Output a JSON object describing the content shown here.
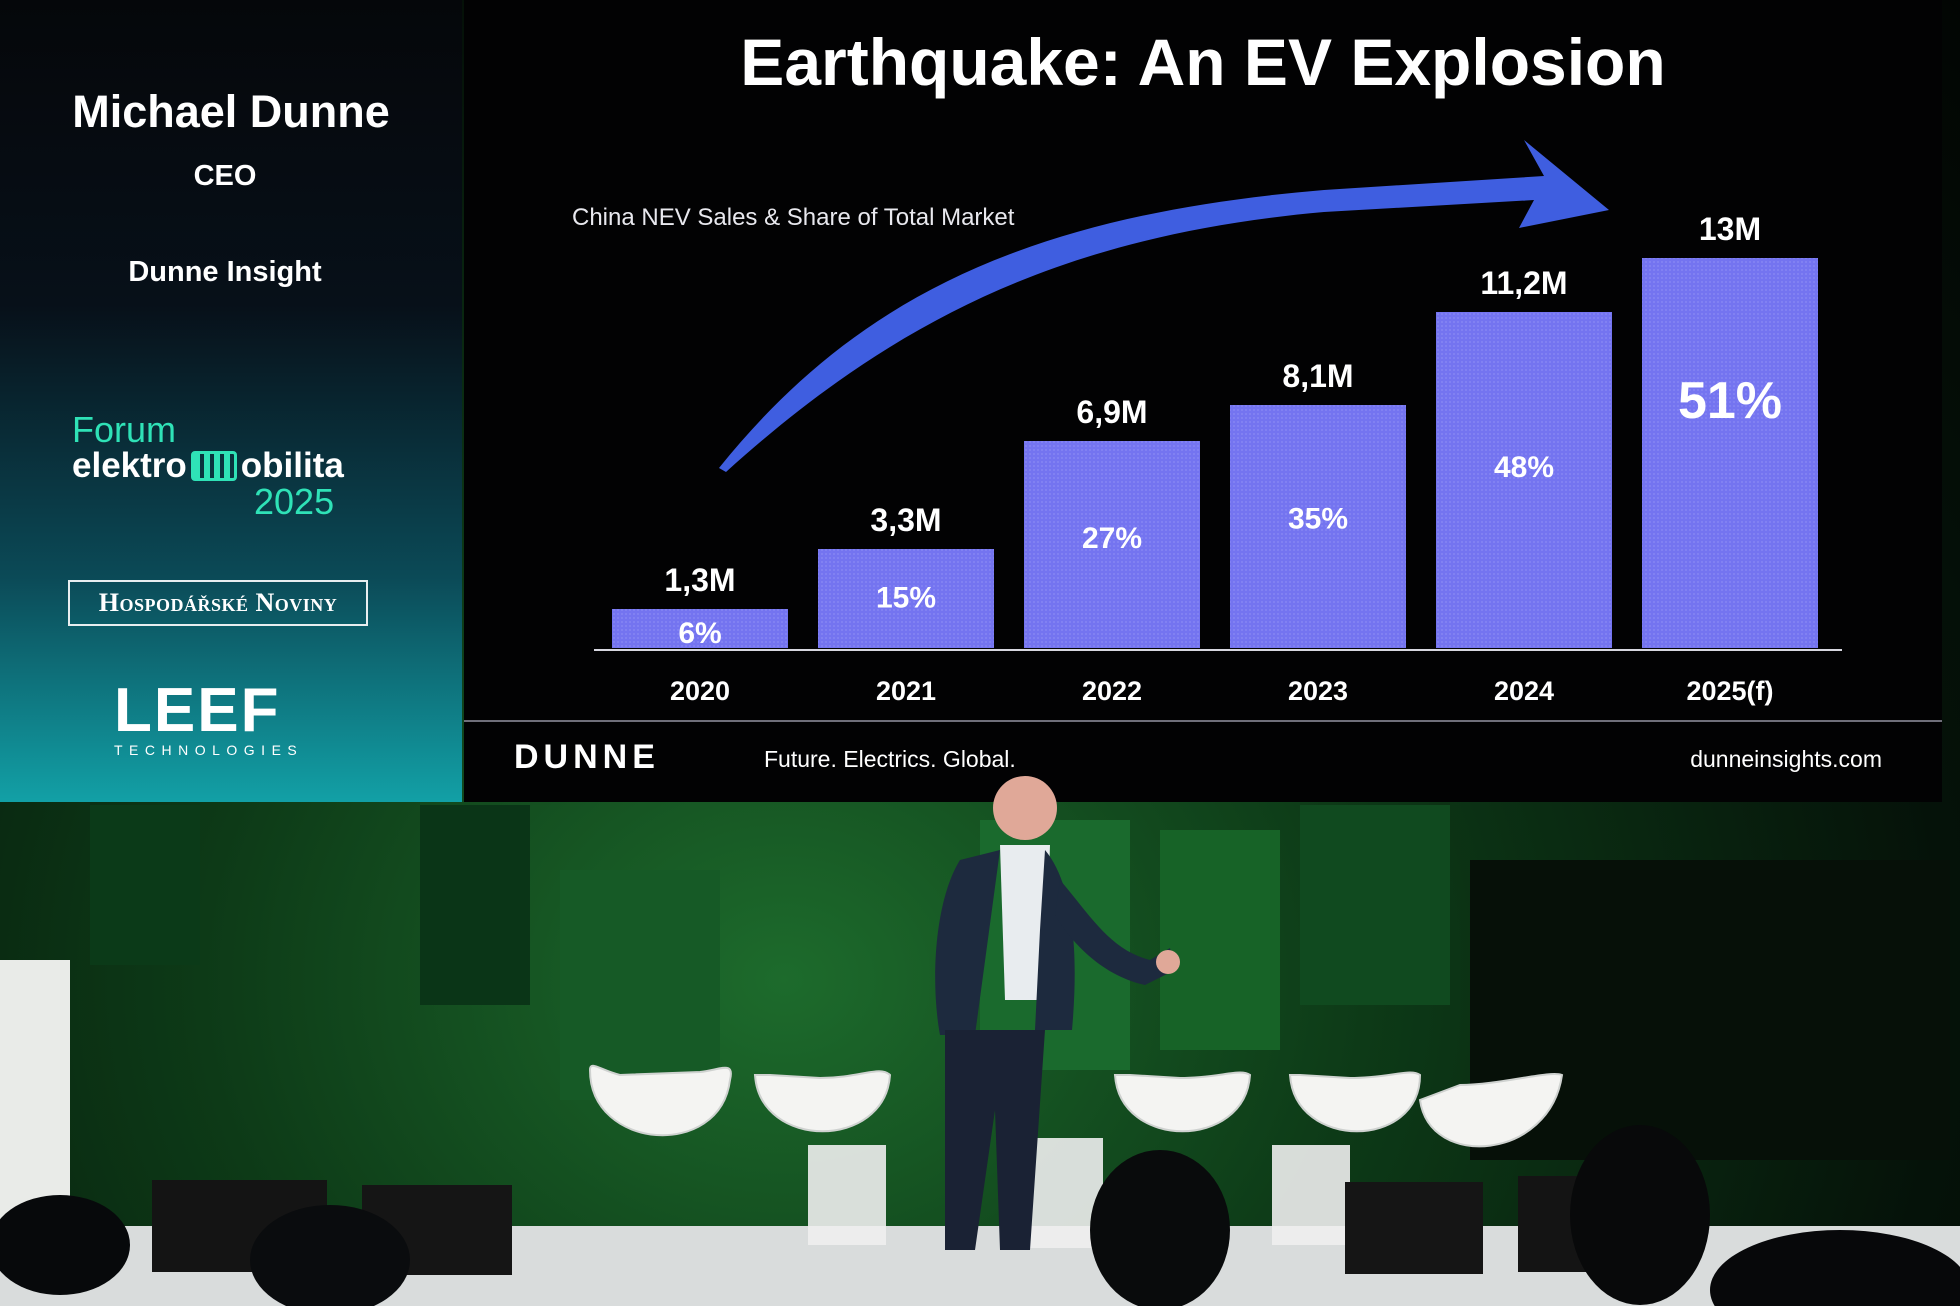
{
  "speaker": {
    "name": "Michael Dunne",
    "role": "CEO",
    "company": "Dunne Insight"
  },
  "event": {
    "line1": "Forum",
    "line2_left": "elektro",
    "line2_right": "obilita",
    "year": "2025"
  },
  "sponsors": {
    "newspaper": "Hospodářské Noviny",
    "leef": "LEEF",
    "leef_sub": "TECHNOLOGIES"
  },
  "slide": {
    "title": "Earthquake: An EV Explosion",
    "footer_brand": "DUNNE",
    "tagline": "Future. Electrics. Global.",
    "url": "dunneinsights.com"
  },
  "chart_data": {
    "type": "bar",
    "title": "China NEV Sales & Share of Total Market",
    "categories": [
      "2020",
      "2021",
      "2022",
      "2023",
      "2024",
      "2025(f)"
    ],
    "values": [
      1.3,
      3.3,
      6.9,
      8.1,
      11.2,
      13
    ],
    "value_labels": [
      "1,3M",
      "3,3M",
      "6,9M",
      "8,1M",
      "11,2M",
      "13M"
    ],
    "share_labels": [
      "6%",
      "15%",
      "27%",
      "35%",
      "48%",
      "51%"
    ],
    "ylim": [
      0,
      13
    ],
    "bar_color": "#7474f0",
    "arrow_color": "#3f5ee0"
  }
}
